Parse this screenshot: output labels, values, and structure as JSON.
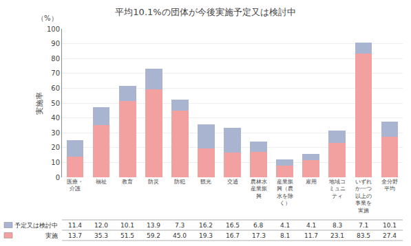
{
  "chart_data": {
    "type": "bar",
    "title": "平均10.1%の団体が今後実施予定又は検討中",
    "ylabel": "実施率",
    "annotations": [
      "（%）"
    ],
    "categories": [
      "医療・\n介護",
      "福祉",
      "教育",
      "防災",
      "防犯",
      "観光",
      "交通",
      "農林水\n産業振\n興",
      "産業振\n興（農\n水を除\nく）",
      "雇用",
      "地域コ\nミュニ\nティ",
      "いずれ\nか一つ\n以上の\n事業を\n実施",
      "全分野\n平均"
    ],
    "series": [
      {
        "name": "実施",
        "color": "#f2a0a0",
        "values": [
          13.7,
          35.3,
          51.5,
          59.2,
          45.0,
          19.3,
          16.7,
          17.3,
          8.1,
          11.7,
          23.1,
          83.5,
          27.4
        ],
        "value_labels": [
          "13.7",
          "35.3",
          "51.5",
          "59.2",
          "45.0",
          "19.3",
          "16.7",
          "17.3",
          "8.1",
          "11.7",
          "23.1",
          "83.5",
          "27.4"
        ]
      },
      {
        "name": "予定又は検討中",
        "color": "#a8b4d0",
        "values": [
          11.4,
          12.0,
          10.1,
          13.9,
          7.3,
          16.2,
          16.5,
          6.8,
          4.1,
          4.1,
          8.3,
          7.1,
          10.1
        ],
        "value_labels": [
          "11.4",
          "12.0",
          "10.1",
          "13.9",
          "7.3",
          "16.2",
          "16.5",
          "6.8",
          "4.1",
          "4.1",
          "8.3",
          "7.1",
          "10.1"
        ]
      }
    ],
    "stacked": true,
    "data_labels": true,
    "ylim": [
      0,
      100
    ],
    "yticks": [
      0,
      10,
      20,
      30,
      40,
      50,
      60,
      70,
      80,
      90,
      100
    ],
    "grid": true
  }
}
